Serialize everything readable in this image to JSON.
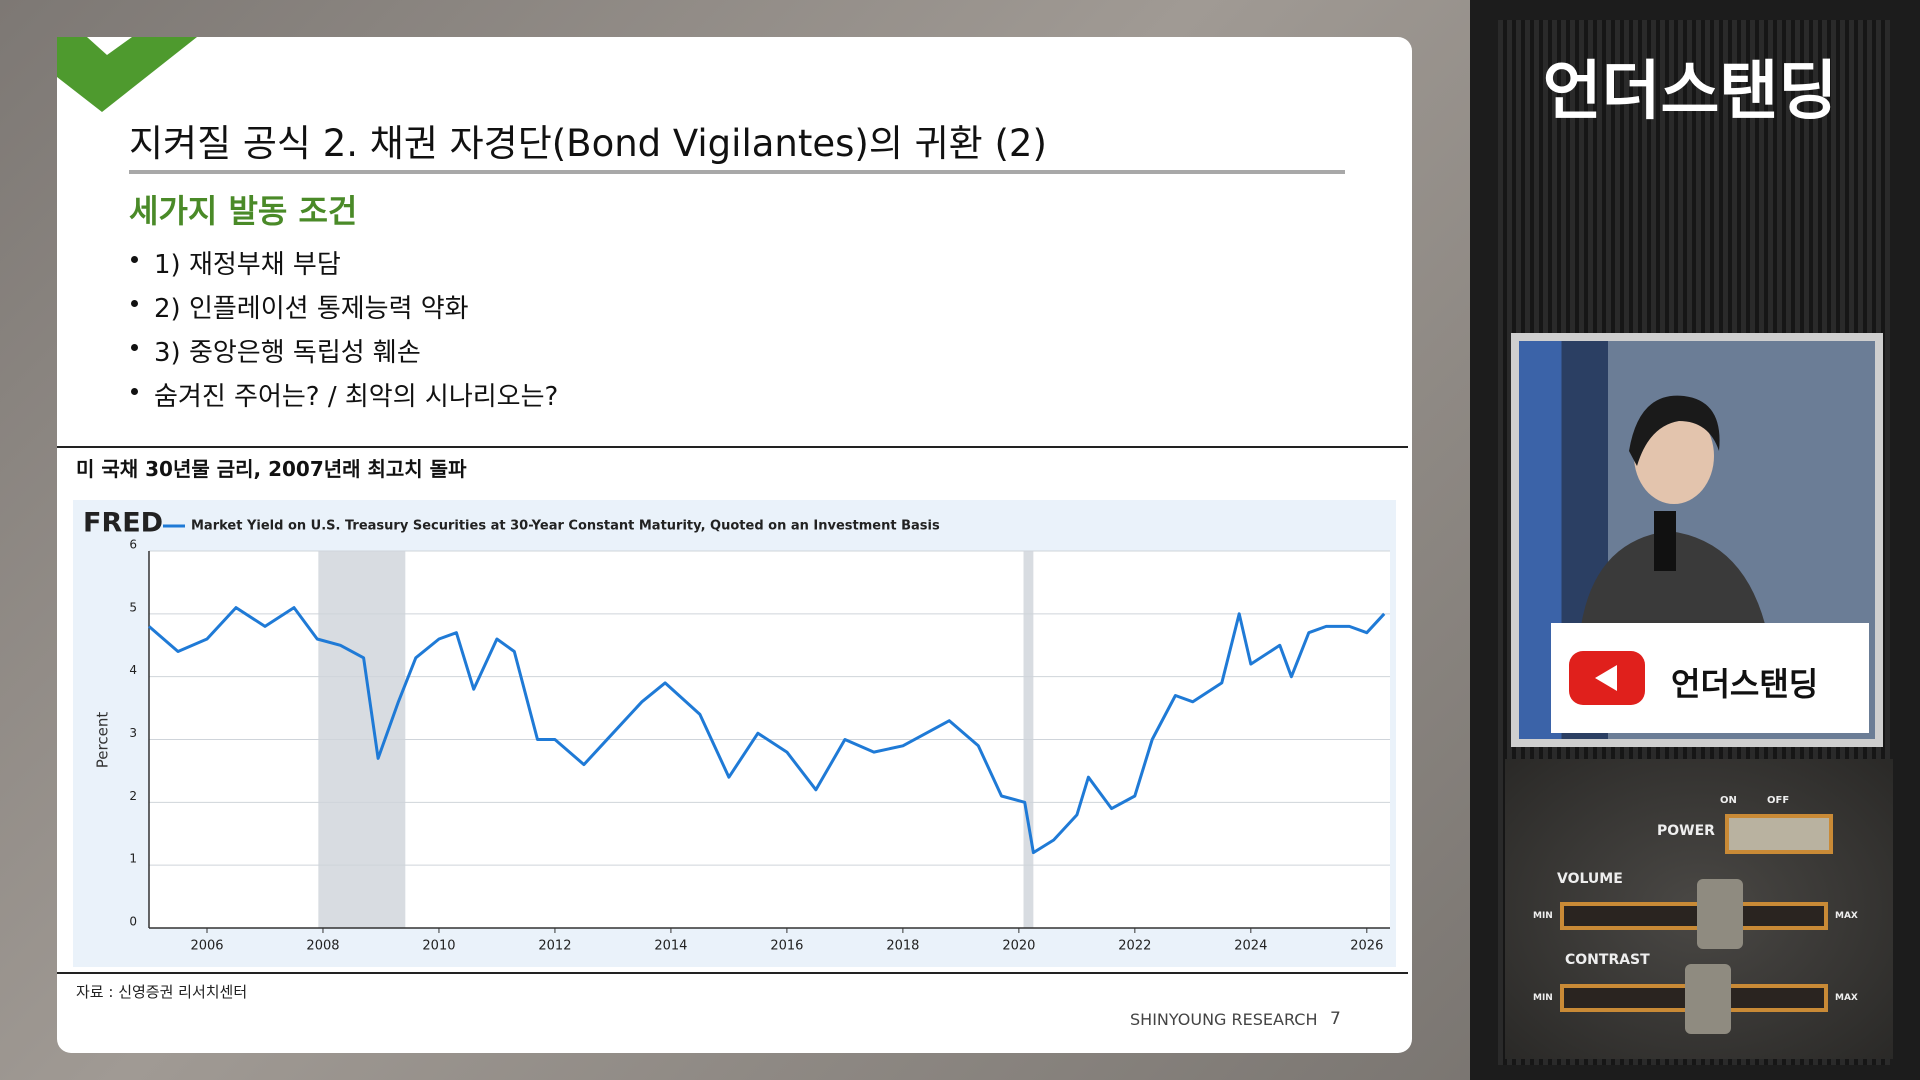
{
  "slide": {
    "title": "지켜질 공식 2. 채권 자경단(Bond Vigilantes)의 귀환 (2)",
    "subtitle": "세가지 발동 조건",
    "bullets": [
      "1) 재정부채 부담",
      "2) 인플레이션 통제능력 약화",
      "3) 중앙은행 독립성 훼손",
      "숨겨진 주어는? / 최악의 시나리오는?"
    ],
    "chart_caption": "미 국채 30년물 금리, 2007년래 최고치 돌파",
    "source": "자료 : 신영증권 리서치센터",
    "footer": "SHINYOUNG RESEARCH",
    "page_number": "7"
  },
  "chart_data": {
    "type": "line",
    "brand": "FRED",
    "y_label": "Percent",
    "x": [
      2005.0,
      2005.5,
      2006.0,
      2006.5,
      2007.0,
      2007.5,
      2007.9,
      2008.3,
      2008.7,
      2008.95,
      2009.3,
      2009.6,
      2010.0,
      2010.3,
      2010.6,
      2011.0,
      2011.3,
      2011.7,
      2012.0,
      2012.5,
      2013.0,
      2013.5,
      2013.9,
      2014.5,
      2015.0,
      2015.5,
      2016.0,
      2016.5,
      2017.0,
      2017.5,
      2018.0,
      2018.8,
      2019.3,
      2019.7,
      2020.1,
      2020.25,
      2020.6,
      2021.0,
      2021.2,
      2021.6,
      2022.0,
      2022.3,
      2022.7,
      2023.0,
      2023.5,
      2023.8,
      2024.0,
      2024.5,
      2024.7,
      2025.0,
      2025.3,
      2025.7,
      2026.0,
      2026.3
    ],
    "series": [
      {
        "name": "Market Yield on U.S. Treasury Securities at 30-Year Constant Maturity, Quoted on an Investment Basis",
        "color": "#1f7ad6",
        "values": [
          4.8,
          4.4,
          4.6,
          5.1,
          4.8,
          5.1,
          4.6,
          4.5,
          4.3,
          2.7,
          3.6,
          4.3,
          4.6,
          4.7,
          3.8,
          4.6,
          4.4,
          3.0,
          3.0,
          2.6,
          3.1,
          3.6,
          3.9,
          3.4,
          2.4,
          3.1,
          2.8,
          2.2,
          3.0,
          2.8,
          2.9,
          3.3,
          2.9,
          2.1,
          2.0,
          1.2,
          1.4,
          1.8,
          2.4,
          1.9,
          2.1,
          3.0,
          3.7,
          3.6,
          3.9,
          5.0,
          4.2,
          4.5,
          4.0,
          4.7,
          4.8,
          4.8,
          4.7,
          5.0
        ]
      }
    ],
    "recessions": [
      [
        2007.92,
        2009.42
      ],
      [
        2020.08,
        2020.25
      ]
    ],
    "recession_color": "#d8dce1",
    "xlim": [
      2005.0,
      2026.4
    ],
    "ylim": [
      0,
      6
    ],
    "xticks": [
      2006,
      2008,
      2010,
      2012,
      2014,
      2016,
      2018,
      2020,
      2022,
      2024,
      2026
    ],
    "yticks": [
      0,
      1,
      2,
      3,
      4,
      5,
      6
    ],
    "grid": true
  },
  "side": {
    "logo": "언더스탠딩",
    "banner": "언더스탠딩",
    "panel": {
      "on": "ON",
      "off": "OFF",
      "power": "POWER",
      "volume": "VOLUME",
      "contrast": "CONTRAST",
      "min": "MIN",
      "max": "MAX"
    }
  }
}
